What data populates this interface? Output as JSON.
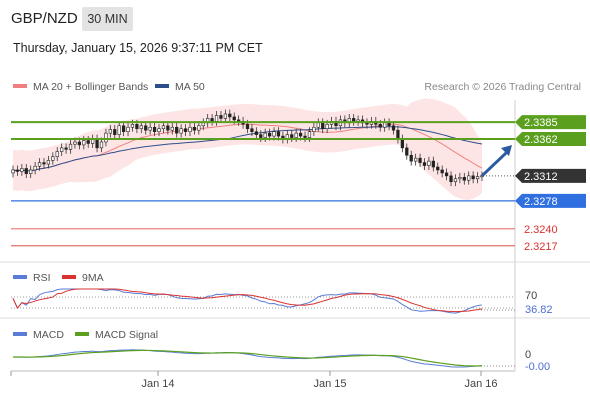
{
  "header": {
    "symbol": "GBP/NZD",
    "timeframe": "30 MIN",
    "datetime": "Thursday, January 15, 2026 9:37:11 PM CET"
  },
  "legend": {
    "bollinger_label": "MA 20 + Bollinger Bands",
    "bollinger_color": "#f08080",
    "ma50_label": "MA 50",
    "ma50_color": "#2c4f8c",
    "copyright": "Research © 2026 Trading Central"
  },
  "chart_data": [
    {
      "type": "candlestick",
      "title": "",
      "ylim": [
        2.3195,
        2.3415
      ],
      "x_labels": [
        "Jan 14",
        "Jan 15",
        "Jan 16"
      ],
      "levels": {
        "resistance": [
          {
            "value": 2.3385,
            "label": "2.3385",
            "color": "#5aa01e"
          },
          {
            "value": 2.3362,
            "label": "2.3362",
            "color": "#5aa01e"
          }
        ],
        "current": {
          "value": 2.3312,
          "label": "2.3312",
          "color": "#333333"
        },
        "support": {
          "value": 2.3278,
          "label": "2.3278",
          "color": "#2f6fe0"
        },
        "lower": [
          {
            "value": 2.324,
            "label": "2.3240",
            "color": "#d9322f"
          },
          {
            "value": 2.3217,
            "label": "2.3217",
            "color": "#d9322f"
          }
        ]
      },
      "close": [
        2.332,
        2.3318,
        2.3322,
        2.3315,
        2.332,
        2.3325,
        2.333,
        2.3328,
        2.3333,
        2.3338,
        2.3345,
        2.335,
        2.3348,
        2.3355,
        2.3358,
        2.3354,
        2.336,
        2.3356,
        2.3362,
        2.335,
        2.3358,
        2.337,
        2.3375,
        2.3368,
        2.338,
        2.3372,
        2.3378,
        2.3382,
        2.3376,
        2.338,
        2.3374,
        2.3378,
        2.3372,
        2.3376,
        2.338,
        2.3374,
        2.3378,
        2.337,
        2.3376,
        2.3372,
        2.3378,
        2.3374,
        2.338,
        2.3384,
        2.339,
        2.3386,
        2.3394,
        2.339,
        2.3396,
        2.3392,
        2.3388,
        2.3386,
        2.3382,
        2.3376,
        2.3372,
        2.3368,
        2.3364,
        2.337,
        2.3366,
        2.3372,
        2.3366,
        2.3362,
        2.3368,
        2.3364,
        2.337,
        2.3366,
        2.3364,
        2.3372,
        2.3378,
        2.3384,
        2.3376,
        2.3382,
        2.3386,
        2.338,
        2.3388,
        2.3384,
        2.339,
        2.3386,
        2.3388,
        2.3384,
        2.3382,
        2.3386,
        2.3382,
        2.3378,
        2.3384,
        2.338,
        2.3374,
        2.3362,
        2.335,
        2.334,
        2.3332,
        2.3336,
        2.333,
        2.3326,
        2.3332,
        2.3324,
        2.332,
        2.3316,
        2.3312,
        2.3304,
        2.3308,
        2.331,
        2.3306,
        2.3312,
        2.3308,
        2.3311,
        2.3312
      ],
      "ma20_band": {
        "upper": 2.34,
        "lower": 2.33
      },
      "ma50_color": "#2c4f8c",
      "forecast_arrow": {
        "from": 2.3312,
        "to": 2.3362
      }
    },
    {
      "type": "line",
      "title": "RSI",
      "series": [
        {
          "name": "RSI",
          "color": "#5a7bd6"
        },
        {
          "name": "9MA",
          "color": "#d9322f"
        }
      ],
      "ref_level": {
        "value": 70,
        "label": "70"
      },
      "current": {
        "label": "36.82"
      }
    },
    {
      "type": "line",
      "title": "MACD",
      "series": [
        {
          "name": "MACD",
          "color": "#5a7bd6"
        },
        {
          "name": "MACD Signal",
          "color": "#5aa01e"
        }
      ],
      "ref_level": {
        "value": 0,
        "label": "0"
      },
      "current": {
        "label": "-0.00"
      }
    }
  ]
}
